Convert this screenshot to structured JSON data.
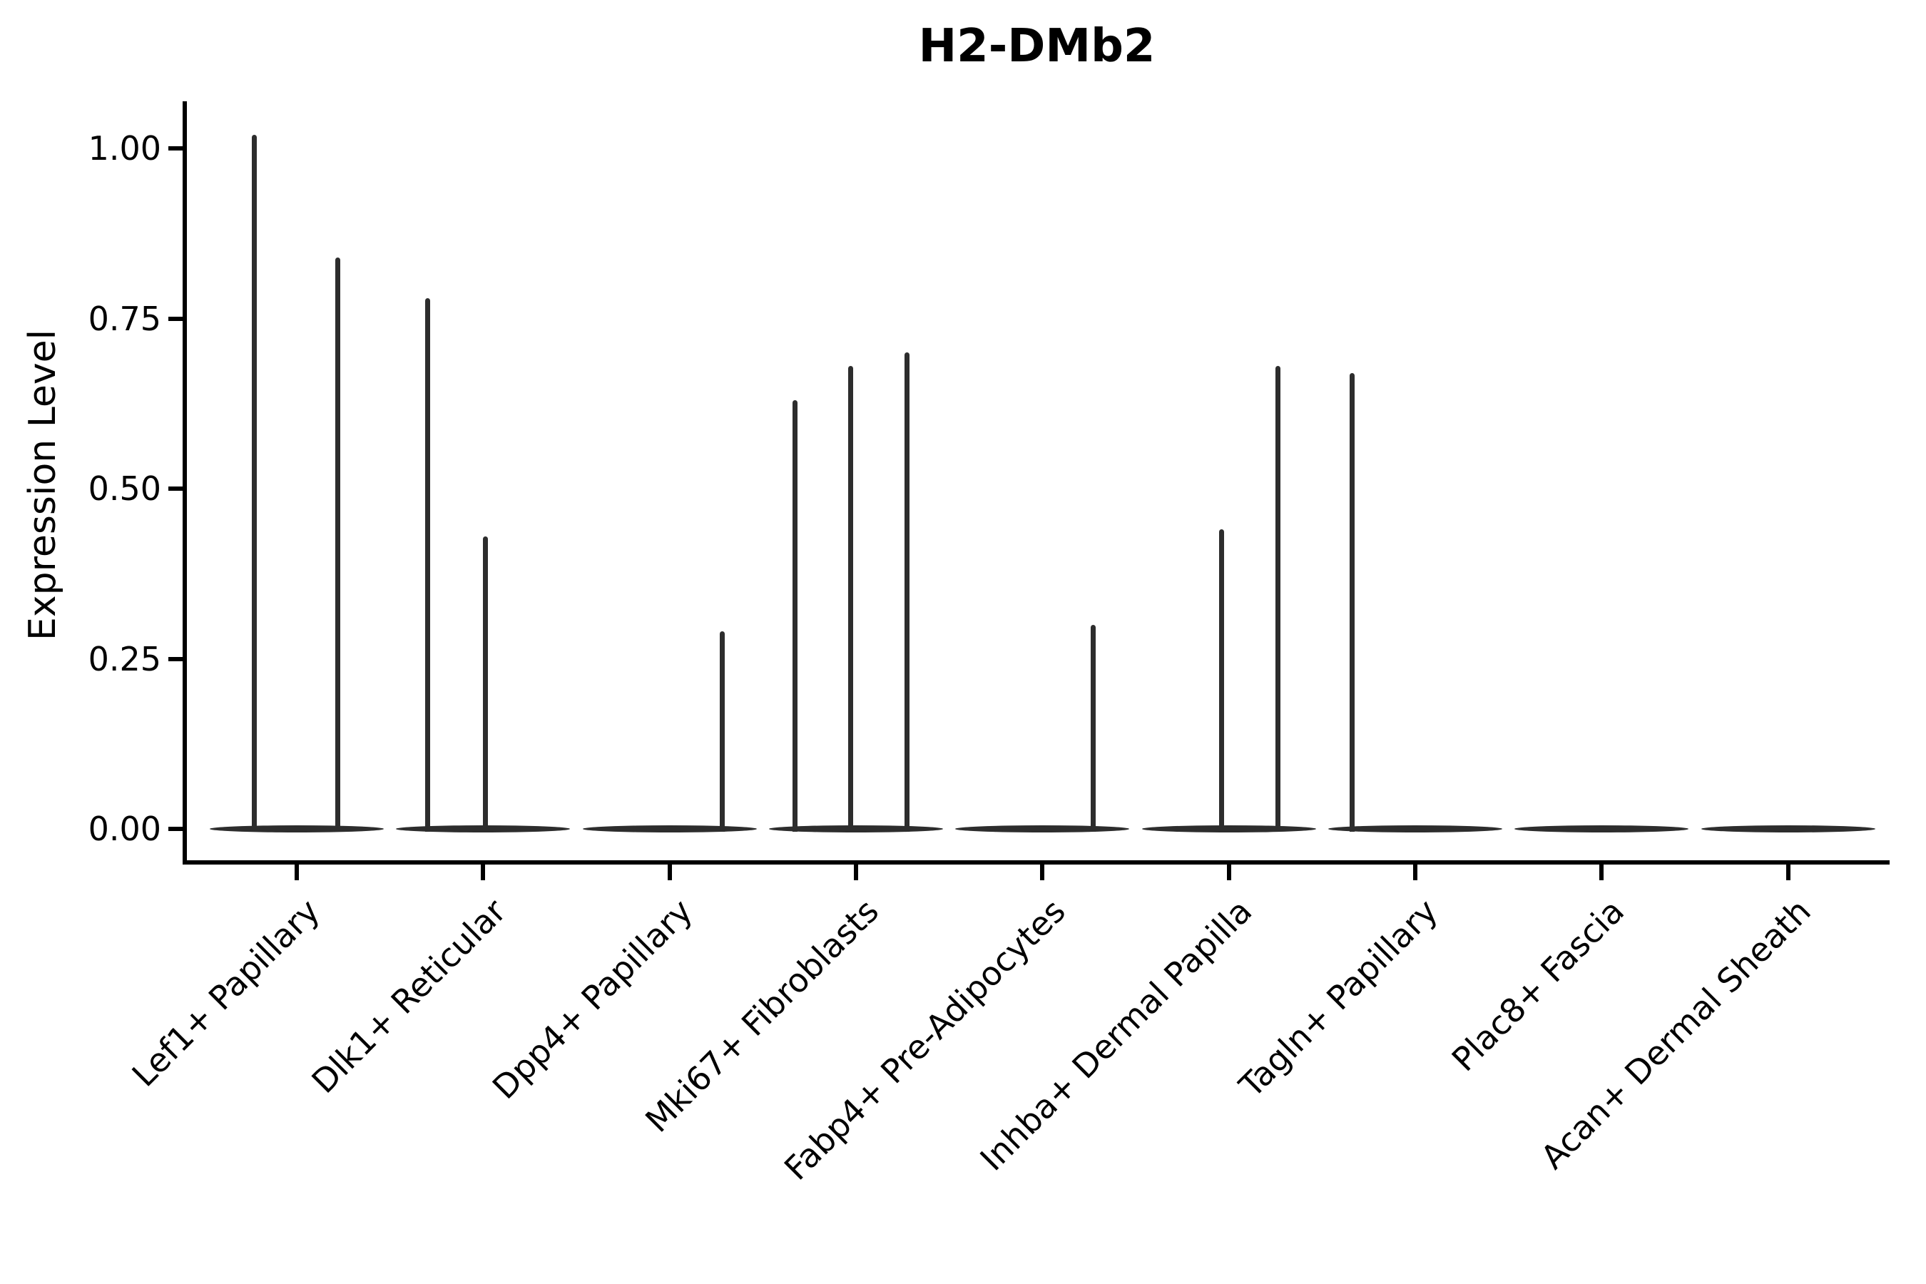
{
  "chart_data": {
    "type": "violin",
    "title": "H2-DMb2",
    "xlabel": "",
    "ylabel": "Expression Level",
    "ylim": [
      0,
      1.07
    ],
    "grid": false,
    "legend": null,
    "y_ticks": [
      {
        "label": "1.00",
        "value": 1.0
      },
      {
        "label": "0.75",
        "value": 0.75
      },
      {
        "label": "0.50",
        "value": 0.5
      },
      {
        "label": "0.25",
        "value": 0.25
      },
      {
        "label": "0.00",
        "value": 0.0
      }
    ],
    "categories": [
      "Lef1+ Papillary",
      "Dlk1+ Reticular",
      "Dpp4+ Papillary",
      "Mki67+ Fibroblasts",
      "Fabp4+ Pre-Adipocytes",
      "Inhba+ Dermal Papilla",
      "Tagln+ Papillary",
      "Plac8+ Fascia",
      "Acan+ Dermal Sheath"
    ],
    "violins": [
      {
        "category": "Lef1+ Papillary",
        "spikes": [
          {
            "pos": -0.23,
            "max": 1.02
          },
          {
            "pos": 0.22,
            "max": 0.84
          }
        ]
      },
      {
        "category": "Dlk1+ Reticular",
        "spikes": [
          {
            "pos": -0.3,
            "max": 0.78
          },
          {
            "pos": 0.01,
            "max": 0.43
          }
        ]
      },
      {
        "category": "Dpp4+ Papillary",
        "spikes": [
          {
            "pos": 0.28,
            "max": 0.29
          }
        ]
      },
      {
        "category": "Mki67+ Fibroblasts",
        "spikes": [
          {
            "pos": -0.33,
            "max": 0.63
          },
          {
            "pos": -0.03,
            "max": 0.68
          },
          {
            "pos": 0.27,
            "max": 0.7
          }
        ]
      },
      {
        "category": "Fabp4+ Pre-Adipocytes",
        "spikes": [
          {
            "pos": 0.27,
            "max": 0.3
          }
        ]
      },
      {
        "category": "Inhba+ Dermal Papilla",
        "spikes": [
          {
            "pos": -0.04,
            "max": 0.44
          },
          {
            "pos": 0.26,
            "max": 0.68
          }
        ]
      },
      {
        "category": "Tagln+ Papillary",
        "spikes": [
          {
            "pos": -0.34,
            "max": 0.67
          }
        ]
      },
      {
        "category": "Plac8+ Fascia",
        "spikes": []
      },
      {
        "category": "Acan+ Dermal Sheath",
        "spikes": []
      }
    ],
    "colors": {
      "violin": "#2d2d2d",
      "axis": "#000000",
      "text": "#000000",
      "background": "#ffffff"
    }
  }
}
